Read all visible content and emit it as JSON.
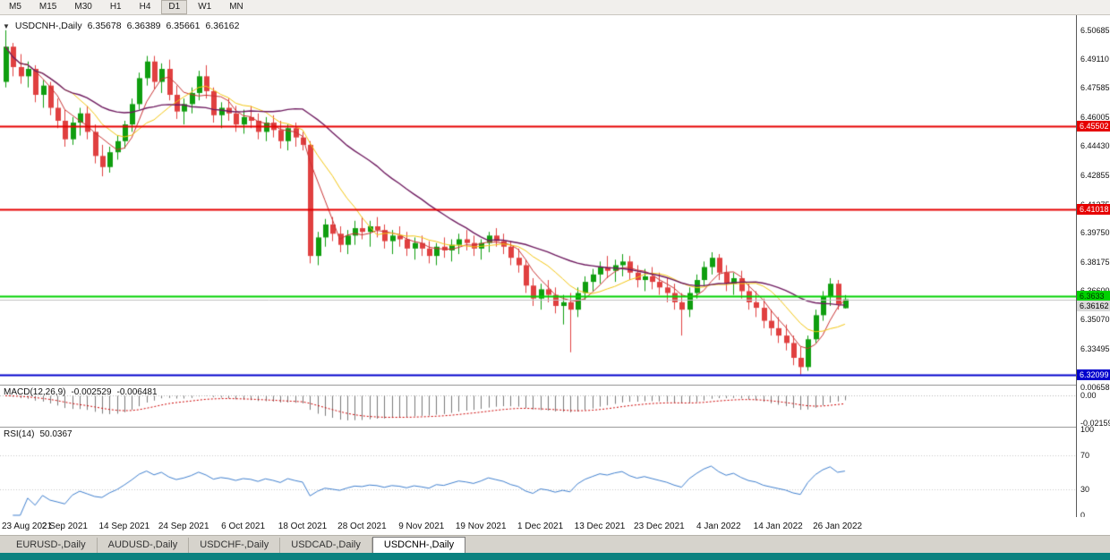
{
  "toolbar": {
    "timeframes": [
      "M5",
      "M15",
      "M30",
      "H1",
      "H4",
      "D1",
      "W1",
      "MN"
    ],
    "active": "D1"
  },
  "colors": {
    "up": "#0f9e0f",
    "down": "#e04040",
    "background": "#ffffff",
    "teal": "#0c8280",
    "rsi_line": "#3f7fce",
    "macd_histogram": "#7a7a7a",
    "macd_signal": "#cc0000"
  },
  "chart": {
    "type": "candlestick",
    "collapse_icon": "▼",
    "title": "USDCNH-,Daily",
    "ohlc": {
      "open": "6.35678",
      "high": "6.36389",
      "low": "6.35661",
      "close": "6.36162"
    },
    "price_axis": {
      "max": 6.515,
      "min": 6.3155,
      "labels": [
        "6.50685",
        "6.49110",
        "6.47585",
        "6.46005",
        "6.44430",
        "6.42855",
        "6.41275",
        "6.39750",
        "6.38175",
        "6.36600",
        "6.35070",
        "6.33495",
        "6.31920"
      ]
    },
    "hlines": [
      {
        "price": 6.45502,
        "label": "6.45502",
        "color": "#e60000",
        "width": 2,
        "label_bg": "#e60000",
        "label_fg": "#ffffff",
        "anchor": "center"
      },
      {
        "price": 6.41018,
        "label": "6.41018",
        "color": "#e60000",
        "width": 2,
        "label_bg": "#e60000",
        "label_fg": "#ffffff",
        "anchor": "center"
      },
      {
        "price": 6.3633,
        "label": "6.3633",
        "color": "#00d200",
        "width": 2,
        "label_bg": "#00d200",
        "label_fg": "#003300",
        "anchor": "center"
      },
      {
        "price": 6.36162,
        "label": "6.36162",
        "color": "#c0c0c0",
        "width": 1,
        "label_bg": "#d9d9d9",
        "label_fg": "#000000",
        "anchor": "below"
      },
      {
        "price": 6.32099,
        "label": "6.32099",
        "color": "#0000cd",
        "width": 2,
        "label_bg": "#0000cd",
        "label_fg": "#ffffff",
        "anchor": "center"
      }
    ],
    "moving_averages": [
      {
        "period": 5,
        "color": "#c83232",
        "width": 1
      },
      {
        "period": 10,
        "color": "#f2c511",
        "width": 1
      },
      {
        "period": 25,
        "color": "#6e1a5f",
        "width": 1.4
      }
    ],
    "candles": [
      [
        6.479,
        6.5069,
        6.476,
        6.498
      ],
      [
        6.498,
        6.5,
        6.482,
        6.487
      ],
      [
        6.487,
        6.494,
        6.478,
        6.482
      ],
      [
        6.482,
        6.49,
        6.476,
        6.486
      ],
      [
        6.486,
        6.488,
        6.468,
        6.472
      ],
      [
        6.472,
        6.48,
        6.465,
        6.477
      ],
      [
        6.477,
        6.479,
        6.461,
        6.465
      ],
      [
        6.465,
        6.47,
        6.454,
        6.458
      ],
      [
        6.458,
        6.464,
        6.444,
        6.448
      ],
      [
        6.448,
        6.46,
        6.445,
        6.457
      ],
      [
        6.457,
        6.465,
        6.45,
        6.462
      ],
      [
        6.462,
        6.466,
        6.448,
        6.452
      ],
      [
        6.452,
        6.456,
        6.435,
        6.439
      ],
      [
        6.439,
        6.445,
        6.428,
        6.433
      ],
      [
        6.433,
        6.444,
        6.43,
        6.441
      ],
      [
        6.441,
        6.45,
        6.437,
        6.447
      ],
      [
        6.447,
        6.458,
        6.443,
        6.456
      ],
      [
        6.456,
        6.47,
        6.452,
        6.467
      ],
      [
        6.467,
        6.484,
        6.464,
        6.481
      ],
      [
        6.481,
        6.493,
        6.477,
        6.49
      ],
      [
        6.49,
        6.493,
        6.475,
        6.479
      ],
      [
        6.479,
        6.489,
        6.473,
        6.486
      ],
      [
        6.486,
        6.491,
        6.469,
        6.472
      ],
      [
        6.472,
        6.477,
        6.459,
        6.463
      ],
      [
        6.463,
        6.47,
        6.456,
        6.467
      ],
      [
        6.467,
        6.476,
        6.462,
        6.473
      ],
      [
        6.473,
        6.485,
        6.469,
        6.482
      ],
      [
        6.482,
        6.488,
        6.47,
        6.474
      ],
      [
        6.474,
        6.476,
        6.457,
        6.461
      ],
      [
        6.461,
        6.468,
        6.454,
        6.465
      ],
      [
        6.465,
        6.47,
        6.458,
        6.462
      ],
      [
        6.462,
        6.466,
        6.452,
        6.456
      ],
      [
        6.456,
        6.464,
        6.451,
        6.46
      ],
      [
        6.46,
        6.466,
        6.454,
        6.458
      ],
      [
        6.458,
        6.462,
        6.448,
        6.452
      ],
      [
        6.452,
        6.46,
        6.447,
        6.457
      ],
      [
        6.457,
        6.461,
        6.449,
        6.453
      ],
      [
        6.453,
        6.458,
        6.443,
        6.447
      ],
      [
        6.447,
        6.456,
        6.442,
        6.454
      ],
      [
        6.454,
        6.457,
        6.444,
        6.449
      ],
      [
        6.449,
        6.452,
        6.442,
        6.445
      ],
      [
        6.445,
        6.447,
        6.381,
        6.385
      ],
      [
        6.385,
        6.398,
        6.38,
        6.395
      ],
      [
        6.395,
        6.405,
        6.39,
        6.402
      ],
      [
        6.402,
        6.406,
        6.393,
        6.397
      ],
      [
        6.397,
        6.401,
        6.387,
        6.391
      ],
      [
        6.391,
        6.399,
        6.386,
        6.396
      ],
      [
        6.396,
        6.404,
        6.391,
        6.4
      ],
      [
        6.4,
        6.406,
        6.394,
        6.398
      ],
      [
        6.398,
        6.404,
        6.39,
        6.401
      ],
      [
        6.401,
        6.406,
        6.395,
        6.399
      ],
      [
        6.399,
        6.402,
        6.389,
        6.393
      ],
      [
        6.393,
        6.399,
        6.386,
        6.396
      ],
      [
        6.396,
        6.401,
        6.39,
        6.394
      ],
      [
        6.394,
        6.398,
        6.385,
        6.389
      ],
      [
        6.389,
        6.395,
        6.383,
        6.392
      ],
      [
        6.392,
        6.396,
        6.385,
        6.389
      ],
      [
        6.389,
        6.393,
        6.381,
        6.385
      ],
      [
        6.385,
        6.392,
        6.38,
        6.39
      ],
      [
        6.39,
        6.395,
        6.384,
        6.388
      ],
      [
        6.388,
        6.394,
        6.382,
        6.391
      ],
      [
        6.391,
        6.397,
        6.386,
        6.394
      ],
      [
        6.394,
        6.399,
        6.388,
        6.392
      ],
      [
        6.392,
        6.396,
        6.385,
        6.389
      ],
      [
        6.389,
        6.394,
        6.383,
        6.392
      ],
      [
        6.392,
        6.398,
        6.387,
        6.396
      ],
      [
        6.396,
        6.4,
        6.39,
        6.393
      ],
      [
        6.393,
        6.397,
        6.386,
        6.39
      ],
      [
        6.39,
        6.393,
        6.38,
        6.384
      ],
      [
        6.384,
        6.389,
        6.376,
        6.38
      ],
      [
        6.38,
        6.383,
        6.365,
        6.369
      ],
      [
        6.369,
        6.373,
        6.358,
        6.362
      ],
      [
        6.362,
        6.37,
        6.356,
        6.367
      ],
      [
        6.367,
        6.372,
        6.36,
        6.364
      ],
      [
        6.364,
        6.368,
        6.354,
        6.358
      ],
      [
        6.358,
        6.364,
        6.348,
        6.36
      ],
      [
        6.36,
        6.365,
        6.333,
        6.356
      ],
      [
        6.356,
        6.368,
        6.352,
        6.365
      ],
      [
        6.365,
        6.374,
        6.361,
        6.371
      ],
      [
        6.371,
        6.378,
        6.366,
        6.375
      ],
      [
        6.375,
        6.382,
        6.37,
        6.379
      ],
      [
        6.379,
        6.385,
        6.373,
        6.377
      ],
      [
        6.377,
        6.383,
        6.371,
        6.38
      ],
      [
        6.38,
        6.386,
        6.374,
        6.382
      ],
      [
        6.382,
        6.385,
        6.372,
        6.376
      ],
      [
        6.376,
        6.38,
        6.368,
        6.372
      ],
      [
        6.372,
        6.378,
        6.366,
        6.374
      ],
      [
        6.374,
        6.379,
        6.367,
        6.371
      ],
      [
        6.371,
        6.376,
        6.364,
        6.368
      ],
      [
        6.368,
        6.373,
        6.36,
        6.365
      ],
      [
        6.365,
        6.37,
        6.356,
        6.36
      ],
      [
        6.36,
        6.365,
        6.342,
        6.356
      ],
      [
        6.356,
        6.368,
        6.352,
        6.365
      ],
      [
        6.365,
        6.375,
        6.362,
        6.372
      ],
      [
        6.372,
        6.382,
        6.369,
        6.379
      ],
      [
        6.379,
        6.387,
        6.375,
        6.384
      ],
      [
        6.384,
        6.386,
        6.372,
        6.376
      ],
      [
        6.376,
        6.38,
        6.366,
        6.37
      ],
      [
        6.37,
        6.376,
        6.364,
        6.373
      ],
      [
        6.373,
        6.377,
        6.362,
        6.366
      ],
      [
        6.366,
        6.37,
        6.356,
        6.36
      ],
      [
        6.36,
        6.366,
        6.352,
        6.357
      ],
      [
        6.357,
        6.362,
        6.346,
        6.35
      ],
      [
        6.35,
        6.356,
        6.342,
        6.346
      ],
      [
        6.346,
        6.352,
        6.338,
        6.342
      ],
      [
        6.342,
        6.348,
        6.334,
        6.338
      ],
      [
        6.338,
        6.342,
        6.326,
        6.33
      ],
      [
        6.33,
        6.336,
        6.321,
        6.325
      ],
      [
        6.325,
        6.342,
        6.323,
        6.34
      ],
      [
        6.34,
        6.356,
        6.338,
        6.353
      ],
      [
        6.353,
        6.366,
        6.35,
        6.363
      ],
      [
        6.363,
        6.373,
        6.358,
        6.37
      ],
      [
        6.37,
        6.372,
        6.356,
        6.359
      ],
      [
        6.35678,
        6.36389,
        6.35661,
        6.36162
      ]
    ]
  },
  "macd": {
    "name": "MACD(12,26,9)",
    "value": "-0.002529",
    "signal": "-0.006481",
    "fast": 12,
    "slow": 26,
    "signal_period": 9,
    "scale_max": 0.008,
    "scale_min": -0.0245,
    "axis_labels": [
      "0.006581",
      "0.00",
      "-0.02159"
    ]
  },
  "rsi": {
    "name": "RSI(14)",
    "value": "50.0367",
    "period": 14,
    "levels": [
      70,
      30
    ],
    "axis_labels": [
      "100",
      "70",
      "30",
      "0"
    ]
  },
  "date_axis": {
    "candles_per_label": 8,
    "labels": [
      "23 Aug 2021",
      "2 Sep 2021",
      "14 Sep 2021",
      "24 Sep 2021",
      "6 Oct 2021",
      "18 Oct 2021",
      "28 Oct 2021",
      "9 Nov 2021",
      "19 Nov 2021",
      "1 Dec 2021",
      "13 Dec 2021",
      "23 Dec 2021",
      "4 Jan 2022",
      "14 Jan 2022",
      "26 Jan 2022"
    ]
  },
  "tabs": {
    "items": [
      "EURUSD-,Daily",
      "AUDUSD-,Daily",
      "USDCHF-,Daily",
      "USDCAD-,Daily",
      "USDCNH-,Daily"
    ],
    "active": "USDCNH-,Daily"
  }
}
